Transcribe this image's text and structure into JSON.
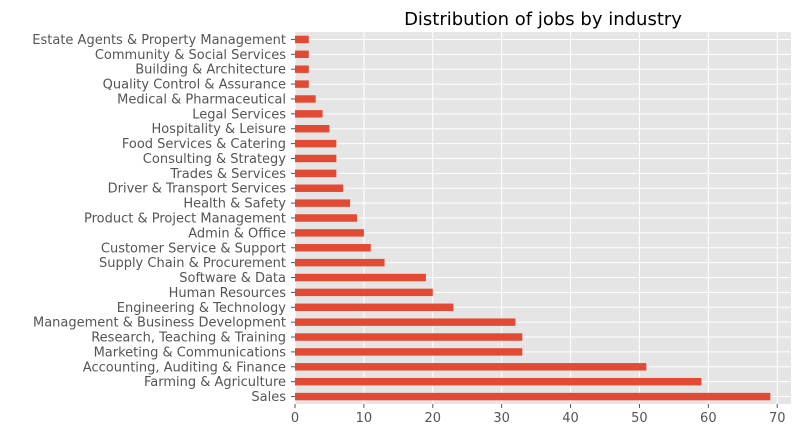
{
  "chart_data": {
    "type": "bar",
    "orientation": "horizontal",
    "title": "Distribution of jobs by industry",
    "xlabel": "",
    "ylabel": "",
    "xlim": [
      0,
      72
    ],
    "xticks": [
      0,
      10,
      20,
      30,
      40,
      50,
      60,
      70
    ],
    "grid": true,
    "style": "ggplot",
    "bar_color": "#e24a33",
    "background_color": "#e5e5e5",
    "categories": [
      "Sales",
      "Farming & Agriculture",
      "Accounting, Auditing & Finance",
      "Marketing & Communications",
      "Research, Teaching & Training",
      "Management & Business Development",
      "Engineering & Technology",
      "Human Resources",
      "Software & Data",
      "Supply Chain & Procurement",
      "Customer Service & Support",
      "Admin & Office",
      "Product & Project Management",
      "Health & Safety",
      "Driver & Transport Services",
      "Trades & Services",
      "Consulting & Strategy",
      "Food Services & Catering",
      "Hospitality & Leisure",
      "Legal Services",
      "Medical & Pharmaceutical",
      "Quality Control & Assurance",
      "Building & Architecture",
      "Community & Social Services",
      "Estate Agents & Property Management"
    ],
    "values": [
      69,
      59,
      51,
      33,
      33,
      32,
      23,
      20,
      19,
      13,
      11,
      10,
      9,
      8,
      7,
      6,
      6,
      6,
      5,
      4,
      3,
      2,
      2,
      2,
      2
    ]
  }
}
